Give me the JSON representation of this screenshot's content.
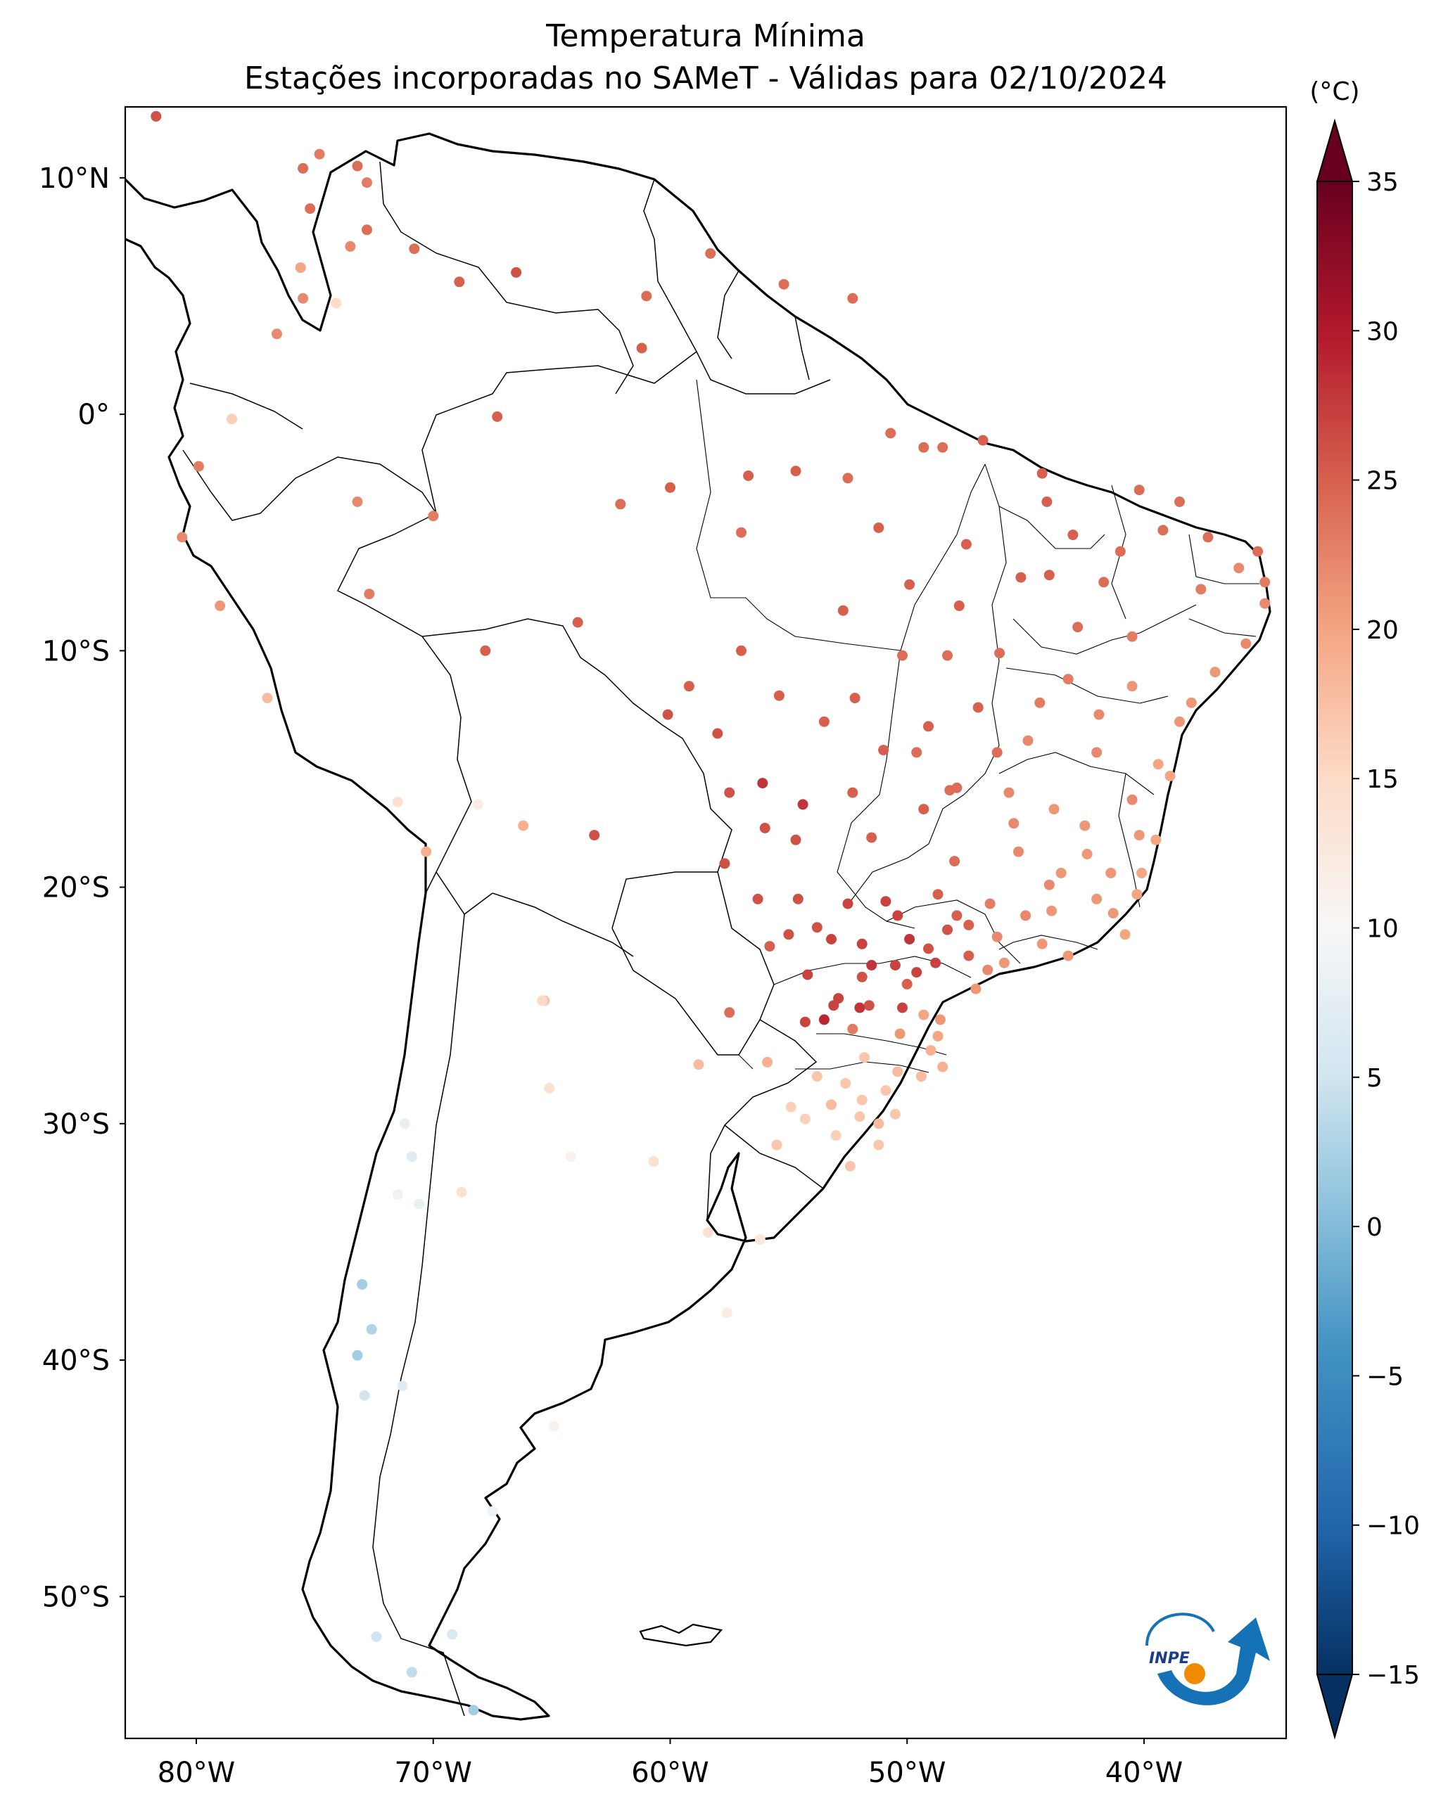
{
  "title": {
    "line1": "Temperatura Mínima",
    "line2": "Estações incorporadas no SAMeT - Válidas para 02/10/2024"
  },
  "colorbar": {
    "unit": "(°C)",
    "min": -15,
    "max": 35,
    "extend": "both",
    "colormap": "RdBu_r",
    "ticks": [
      "35",
      "30",
      "25",
      "20",
      "15",
      "10",
      "5",
      "0",
      "−10",
      "−15"
    ],
    "tick_values": [
      35,
      30,
      25,
      20,
      15,
      10,
      5,
      0,
      -10,
      -15
    ],
    "minor_tick_label": "−5",
    "minor_tick_value": -5
  },
  "map": {
    "lon_range": [
      -83,
      -34
    ],
    "lat_range": [
      -56,
      13
    ],
    "lat_ticks": [
      {
        "label": "10°N",
        "value": 10
      },
      {
        "label": "0°",
        "value": 0
      },
      {
        "label": "10°S",
        "value": -10
      },
      {
        "label": "20°S",
        "value": -20
      },
      {
        "label": "30°S",
        "value": -30
      },
      {
        "label": "40°S",
        "value": -40
      },
      {
        "label": "50°S",
        "value": -50
      }
    ],
    "lon_ticks": [
      {
        "label": "80°W",
        "value": -80
      },
      {
        "label": "70°W",
        "value": -70
      },
      {
        "label": "60°W",
        "value": -60
      },
      {
        "label": "50°W",
        "value": -50
      },
      {
        "label": "40°W",
        "value": -40
      }
    ]
  },
  "logo": {
    "text": "INPE"
  },
  "stations": [
    [
      -81.7,
      12.6,
      26
    ],
    [
      -74.8,
      11.0,
      23
    ],
    [
      -75.5,
      10.4,
      24
    ],
    [
      -73.2,
      10.5,
      24
    ],
    [
      -72.8,
      9.8,
      23
    ],
    [
      -75.2,
      8.7,
      24
    ],
    [
      -73.5,
      7.1,
      22
    ],
    [
      -72.8,
      7.8,
      24
    ],
    [
      -75.6,
      6.2,
      20
    ],
    [
      -74.1,
      4.7,
      15
    ],
    [
      -75.5,
      4.9,
      22
    ],
    [
      -76.6,
      3.4,
      22
    ],
    [
      -66.5,
      6.0,
      26
    ],
    [
      -70.8,
      7.0,
      24
    ],
    [
      -68.9,
      5.6,
      25
    ],
    [
      -61.0,
      5.0,
      24
    ],
    [
      -58.3,
      6.8,
      24
    ],
    [
      -55.2,
      5.5,
      24
    ],
    [
      -52.3,
      4.9,
      24
    ],
    [
      -61.2,
      2.8,
      25
    ],
    [
      -67.3,
      -0.1,
      25
    ],
    [
      -60.0,
      -3.1,
      25
    ],
    [
      -54.7,
      -2.4,
      25
    ],
    [
      -56.7,
      -2.6,
      25
    ],
    [
      -49.3,
      -1.4,
      24
    ],
    [
      -48.5,
      -1.4,
      24
    ],
    [
      -44.3,
      -2.5,
      25
    ],
    [
      -44.1,
      -3.7,
      25
    ],
    [
      -38.5,
      -3.7,
      24
    ],
    [
      -37.3,
      -5.2,
      24
    ],
    [
      -35.2,
      -5.8,
      24
    ],
    [
      -34.9,
      -7.1,
      23
    ],
    [
      -34.9,
      -8.0,
      22
    ],
    [
      -35.7,
      -9.7,
      22
    ],
    [
      -37.0,
      -10.9,
      21
    ],
    [
      -38.5,
      -13.0,
      21
    ],
    [
      -40.3,
      -20.3,
      20
    ],
    [
      -43.2,
      -22.9,
      21
    ],
    [
      -46.6,
      -23.5,
      22
    ],
    [
      -49.3,
      -25.4,
      20
    ],
    [
      -48.5,
      -27.6,
      19
    ],
    [
      -51.2,
      -30.0,
      18
    ],
    [
      -52.4,
      -31.8,
      17
    ],
    [
      -47.9,
      -15.8,
      24
    ],
    [
      -49.3,
      -16.7,
      25
    ],
    [
      -56.1,
      -15.6,
      28
    ],
    [
      -54.6,
      -20.5,
      26
    ],
    [
      -60.1,
      -12.7,
      26
    ],
    [
      -63.9,
      -8.8,
      25
    ],
    [
      -67.8,
      -10.0,
      25
    ],
    [
      -72.7,
      -7.6,
      23
    ],
    [
      -70.0,
      -4.3,
      23
    ],
    [
      -73.2,
      -3.7,
      22
    ],
    [
      -78.5,
      -0.2,
      16
    ],
    [
      -79.9,
      -2.2,
      23
    ],
    [
      -80.6,
      -5.2,
      22
    ],
    [
      -79.0,
      -8.1,
      21
    ],
    [
      -77.0,
      -12.0,
      18
    ],
    [
      -71.5,
      -16.4,
      14
    ],
    [
      -70.3,
      -18.5,
      19
    ],
    [
      -68.1,
      -16.5,
      12
    ],
    [
      -66.2,
      -17.4,
      19
    ],
    [
      -63.2,
      -17.8,
      26
    ],
    [
      -65.3,
      -24.8,
      17
    ],
    [
      -64.2,
      -31.4,
      11
    ],
    [
      -58.4,
      -34.6,
      14
    ],
    [
      -57.6,
      -38.0,
      12
    ],
    [
      -68.8,
      -32.9,
      14
    ],
    [
      -70.6,
      -33.4,
      8
    ],
    [
      -71.5,
      -33.0,
      9
    ],
    [
      -73.0,
      -36.8,
      2
    ],
    [
      -72.6,
      -38.7,
      3
    ],
    [
      -73.2,
      -39.8,
      2
    ],
    [
      -72.9,
      -41.5,
      5
    ],
    [
      -71.3,
      -41.1,
      7
    ],
    [
      -67.5,
      -46.4,
      9
    ],
    [
      -70.9,
      -53.2,
      4
    ],
    [
      -68.3,
      -54.8,
      2
    ],
    [
      -57.5,
      -25.3,
      24
    ],
    [
      -55.9,
      -27.4,
      19
    ],
    [
      -58.8,
      -27.5,
      18
    ],
    [
      -60.7,
      -31.6,
      14
    ],
    [
      -56.2,
      -34.9,
      13
    ],
    [
      -64.9,
      -42.8,
      11
    ],
    [
      -69.2,
      -51.6,
      6
    ],
    [
      -72.4,
      -51.7,
      5
    ],
    [
      -65.1,
      -28.5,
      14
    ],
    [
      -65.4,
      -24.8,
      15
    ],
    [
      -71.2,
      -30.0,
      8
    ],
    [
      -70.9,
      -31.4,
      7
    ],
    [
      -62.1,
      -3.8,
      24
    ],
    [
      -57.0,
      -5.0,
      24
    ],
    [
      -55.4,
      -11.9,
      25
    ],
    [
      -52.7,
      -8.3,
      25
    ],
    [
      -51.0,
      -14.2,
      25
    ],
    [
      -51.5,
      -17.9,
      25
    ],
    [
      -49.9,
      -22.2,
      28
    ],
    [
      -50.4,
      -21.2,
      27
    ],
    [
      -48.8,
      -23.2,
      27
    ],
    [
      -51.5,
      -23.3,
      28
    ],
    [
      -52.9,
      -24.7,
      27
    ],
    [
      -53.5,
      -25.6,
      29
    ],
    [
      -54.3,
      -25.7,
      27
    ],
    [
      -50.4,
      -27.8,
      18
    ],
    [
      -52.0,
      -29.7,
      17
    ],
    [
      -53.2,
      -29.2,
      18
    ],
    [
      -54.9,
      -29.3,
      16
    ],
    [
      -55.5,
      -30.9,
      17
    ],
    [
      -41.3,
      -21.1,
      21
    ],
    [
      -42.4,
      -18.6,
      21
    ],
    [
      -44.0,
      -19.9,
      22
    ],
    [
      -46.5,
      -20.7,
      23
    ],
    [
      -45.3,
      -18.5,
      22
    ],
    [
      -43.8,
      -16.7,
      21
    ],
    [
      -40.5,
      -16.3,
      22
    ],
    [
      -42.0,
      -14.3,
      22
    ],
    [
      -44.4,
      -12.2,
      23
    ],
    [
      -46.1,
      -10.1,
      24
    ],
    [
      -42.8,
      -9.0,
      24
    ],
    [
      -40.5,
      -9.4,
      23
    ],
    [
      -41.7,
      -7.1,
      24
    ],
    [
      -43.0,
      -5.1,
      25
    ],
    [
      -45.2,
      -6.9,
      25
    ],
    [
      -47.5,
      -5.5,
      25
    ],
    [
      -47.8,
      -8.1,
      25
    ],
    [
      -48.3,
      -10.2,
      24
    ],
    [
      -47.0,
      -12.4,
      25
    ],
    [
      -49.1,
      -13.2,
      25
    ],
    [
      -46.2,
      -14.3,
      24
    ],
    [
      -48.0,
      -18.9,
      24
    ],
    [
      -45.0,
      -21.2,
      22
    ],
    [
      -47.4,
      -22.9,
      25
    ],
    [
      -47.9,
      -21.2,
      25
    ],
    [
      -50.0,
      -24.1,
      25
    ],
    [
      -51.9,
      -22.4,
      27
    ],
    [
      -53.8,
      -21.7,
      26
    ],
    [
      -55.8,
      -22.5,
      25
    ],
    [
      -57.7,
      -19.0,
      26
    ],
    [
      -54.7,
      -18.0,
      26
    ],
    [
      -52.3,
      -16.0,
      25
    ],
    [
      -49.6,
      -14.3,
      24
    ],
    [
      -48.2,
      -15.9,
      24
    ],
    [
      -45.5,
      -17.3,
      22
    ],
    [
      -43.5,
      -19.4,
      21
    ],
    [
      -42.0,
      -20.5,
      21
    ],
    [
      -40.8,
      -22.0,
      20
    ],
    [
      -44.3,
      -22.4,
      21
    ],
    [
      -45.9,
      -23.2,
      21
    ],
    [
      -47.1,
      -24.3,
      21
    ],
    [
      -48.6,
      -25.6,
      21
    ],
    [
      -49.0,
      -26.9,
      19
    ],
    [
      -50.3,
      -26.2,
      21
    ],
    [
      -51.6,
      -25.0,
      26
    ],
    [
      -52.3,
      -26.0,
      23
    ],
    [
      -51.8,
      -27.2,
      17
    ],
    [
      -50.9,
      -28.6,
      17
    ],
    [
      -51.9,
      -29.0,
      17
    ],
    [
      -52.6,
      -28.3,
      17
    ],
    [
      -53.8,
      -28.0,
      17
    ],
    [
      -54.3,
      -29.8,
      16
    ],
    [
      -53.0,
      -30.5,
      16
    ],
    [
      -51.2,
      -30.9,
      17
    ],
    [
      -50.5,
      -29.6,
      17
    ],
    [
      -48.7,
      -26.3,
      20
    ],
    [
      -49.4,
      -28.0,
      18
    ],
    [
      -38.9,
      -15.3,
      20
    ],
    [
      -39.5,
      -18.0,
      20
    ],
    [
      -40.1,
      -19.4,
      20
    ],
    [
      -37.6,
      -7.4,
      23
    ],
    [
      -36.0,
      -6.5,
      22
    ],
    [
      -39.2,
      -4.9,
      24
    ],
    [
      -40.2,
      -3.2,
      24
    ],
    [
      -41.0,
      -5.8,
      24
    ],
    [
      -40.5,
      -11.5,
      21
    ],
    [
      -38.0,
      -12.2,
      21
    ],
    [
      -39.4,
      -14.8,
      20
    ],
    [
      -41.9,
      -12.7,
      22
    ],
    [
      -43.2,
      -11.2,
      23
    ],
    [
      -44.9,
      -13.8,
      22
    ],
    [
      -45.7,
      -16.0,
      22
    ],
    [
      -42.5,
      -17.4,
      21
    ],
    [
      -40.2,
      -17.8,
      21
    ],
    [
      -41.4,
      -19.4,
      21
    ],
    [
      -43.9,
      -21.0,
      21
    ],
    [
      -46.2,
      -22.1,
      22
    ],
    [
      -48.3,
      -21.8,
      26
    ],
    [
      -49.1,
      -22.6,
      26
    ],
    [
      -50.5,
      -23.3,
      27
    ],
    [
      -51.9,
      -23.8,
      26
    ],
    [
      -53.1,
      -25.0,
      27
    ],
    [
      -52.0,
      -25.1,
      28
    ],
    [
      -50.2,
      -25.1,
      27
    ],
    [
      -49.6,
      -23.6,
      27
    ],
    [
      -47.4,
      -21.6,
      25
    ],
    [
      -48.7,
      -20.3,
      25
    ],
    [
      -50.9,
      -20.6,
      27
    ],
    [
      -52.5,
      -20.7,
      27
    ],
    [
      -53.2,
      -22.2,
      27
    ],
    [
      -54.2,
      -23.7,
      27
    ],
    [
      -55.0,
      -22.0,
      26
    ],
    [
      -56.3,
      -20.5,
      26
    ],
    [
      -56.0,
      -17.5,
      26
    ],
    [
      -54.4,
      -16.5,
      28
    ],
    [
      -57.5,
      -16.0,
      26
    ],
    [
      -58.0,
      -13.5,
      26
    ],
    [
      -59.2,
      -11.5,
      25
    ],
    [
      -57.0,
      -10.0,
      25
    ],
    [
      -53.5,
      -13.0,
      25
    ],
    [
      -52.2,
      -12.0,
      25
    ],
    [
      -50.2,
      -10.2,
      24
    ],
    [
      -49.9,
      -7.2,
      25
    ],
    [
      -51.2,
      -4.8,
      25
    ],
    [
      -52.5,
      -2.7,
      24
    ],
    [
      -50.7,
      -0.8,
      24
    ],
    [
      -46.8,
      -1.1,
      25
    ],
    [
      -44.0,
      -6.8,
      25
    ]
  ]
}
